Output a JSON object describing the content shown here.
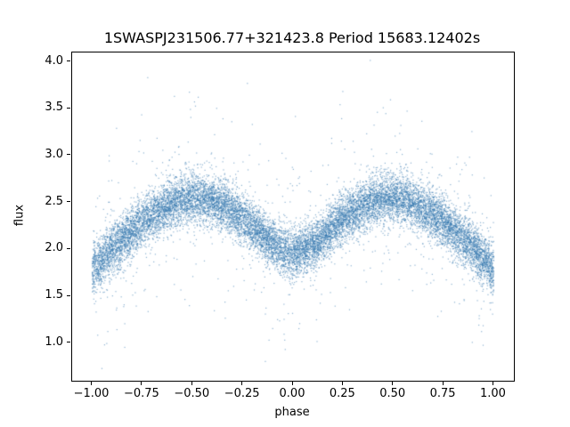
{
  "chart_data": {
    "type": "scatter",
    "title": "1SWASPJ231506.77+321423.8 Period 15683.12402s",
    "xlabel": "phase",
    "ylabel": "flux",
    "xlim": [
      -1.1,
      1.1
    ],
    "ylim": [
      0.6,
      4.1
    ],
    "xticks": [
      -1.0,
      -0.75,
      -0.5,
      -0.25,
      0.0,
      0.25,
      0.5,
      0.75,
      1.0
    ],
    "xtick_labels": [
      "−1.00",
      "−0.75",
      "−0.50",
      "−0.25",
      "0.00",
      "0.25",
      "0.50",
      "0.75",
      "1.00"
    ],
    "yticks": [
      1.0,
      1.5,
      2.0,
      2.5,
      3.0,
      3.5,
      4.0
    ],
    "ytick_labels": [
      "1.0",
      "1.5",
      "2.0",
      "2.5",
      "3.0",
      "3.5",
      "4.0"
    ],
    "grid": false,
    "legend": null,
    "marker_color": "rgba(49,116,173,0.55)",
    "marker_size": 1.2,
    "n_points": 16000,
    "seed": 20230923,
    "mean_curve": {
      "phase": [
        -1.0,
        -0.875,
        -0.75,
        -0.625,
        -0.5,
        -0.375,
        -0.25,
        -0.125,
        0.0,
        0.125,
        0.25,
        0.375,
        0.5,
        0.625,
        0.75,
        0.875,
        1.0
      ],
      "flux": [
        1.78,
        2.06,
        2.3,
        2.47,
        2.56,
        2.5,
        2.33,
        2.08,
        1.94,
        2.08,
        2.33,
        2.5,
        2.56,
        2.47,
        2.3,
        2.06,
        1.78
      ]
    },
    "noise": {
      "core_std": 0.13,
      "outlier_frac": 0.045,
      "outlier_std": 0.5
    }
  }
}
